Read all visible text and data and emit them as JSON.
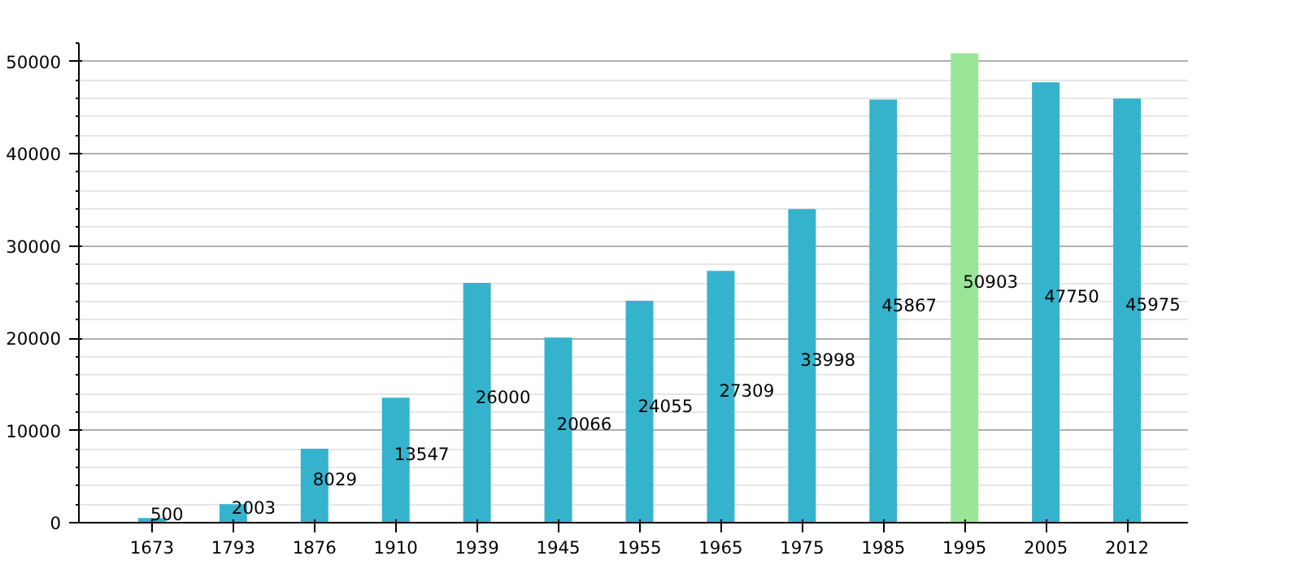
{
  "chart_data": {
    "type": "bar",
    "categories": [
      "1673",
      "1793",
      "1876",
      "1910",
      "1939",
      "1945",
      "1955",
      "1965",
      "1975",
      "1985",
      "1995",
      "2005",
      "2012"
    ],
    "values": [
      500,
      2003,
      8029,
      13547,
      26000,
      20066,
      24055,
      27309,
      33998,
      45867,
      50903,
      47750,
      45975
    ],
    "colors": [
      "#35b3cc",
      "#35b3cc",
      "#35b3cc",
      "#35b3cc",
      "#35b3cc",
      "#35b3cc",
      "#35b3cc",
      "#35b3cc",
      "#35b3cc",
      "#35b3cc",
      "#99e699",
      "#35b3cc",
      "#35b3cc"
    ],
    "ylim": [
      0,
      52000
    ],
    "yticks": [
      0,
      10000,
      20000,
      30000,
      40000,
      50000
    ],
    "grid": "y",
    "data_labels": true
  }
}
